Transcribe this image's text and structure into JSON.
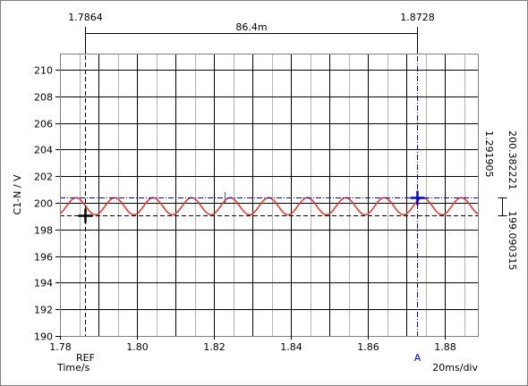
{
  "chart_data": {
    "type": "line",
    "title": "",
    "xlabel": "Time/s",
    "ylabel": "C1-N / V",
    "xlim": [
      1.78,
      1.8885
    ],
    "ylim": [
      190,
      211.2
    ],
    "x_ticks": [
      "1.78",
      "1.80",
      "1.82",
      "1.84",
      "1.86",
      "1.88"
    ],
    "y_ticks": [
      "190",
      "192",
      "194",
      "196",
      "198",
      "200",
      "202",
      "204",
      "206",
      "208",
      "210"
    ],
    "grid": true,
    "timebase_label": "20ms/div",
    "series": [
      {
        "color": "#e8392c",
        "waveform": "sine",
        "center": 199.74,
        "amplitude": 0.64,
        "period": 0.01,
        "phase_x": 1.7817,
        "x_range": [
          1.78,
          1.8885
        ]
      }
    ],
    "cursors": {
      "ref": {
        "label": "REF",
        "x": 1.7864,
        "y": 199.09,
        "x_text": "1.7864",
        "color": "#000000"
      },
      "a": {
        "label": "A",
        "x": 1.8728,
        "y": 200.38,
        "x_text": "1.8728",
        "color": "#0000cc"
      },
      "delta_x": "86.4m",
      "a_value": "200.382221",
      "delta_y": "1.291905",
      "ref_value": "199.090315"
    },
    "extra_marker_x": 1.8228
  },
  "colors": {
    "grid_major": "#000000",
    "grid_minor": "#b4b4b4",
    "frame": "#808080",
    "trace": "#e8392c",
    "cursor_a": "#0000cc",
    "cursor_ref": "#000000"
  }
}
